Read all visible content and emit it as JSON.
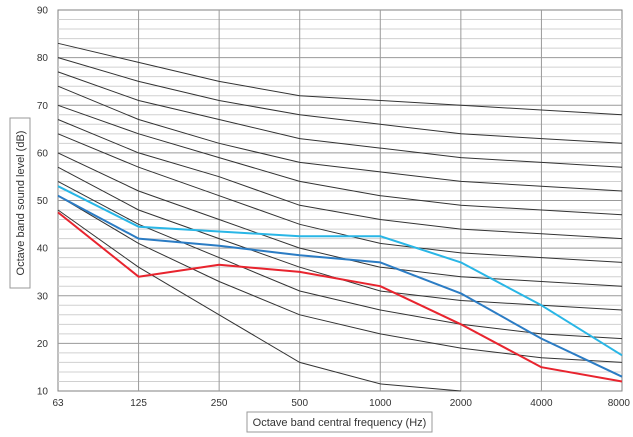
{
  "chart_data": {
    "type": "line",
    "title": "",
    "xlabel": "Octave band central frequency (Hz)",
    "ylabel": "Octave band sound level (dB)",
    "categories": [
      "63",
      "125",
      "250",
      "500",
      "1000",
      "2000",
      "4000",
      "8000"
    ],
    "ylim": [
      10,
      90
    ],
    "yticks": [
      10,
      20,
      30,
      40,
      50,
      60,
      70,
      80,
      90
    ],
    "grid": true,
    "legend": "none",
    "reference_curves": [
      {
        "values": [
          83,
          79,
          75,
          72,
          71,
          70,
          69,
          68
        ]
      },
      {
        "values": [
          80,
          75,
          71,
          68,
          66,
          64,
          63,
          62
        ]
      },
      {
        "values": [
          77,
          71,
          67,
          63,
          61,
          59,
          58,
          57
        ]
      },
      {
        "values": [
          74,
          67,
          62,
          58,
          56,
          54,
          53,
          52
        ]
      },
      {
        "values": [
          70,
          64,
          59,
          54,
          51,
          49,
          48,
          47
        ]
      },
      {
        "values": [
          67,
          60,
          55,
          49,
          46,
          44,
          43,
          42
        ]
      },
      {
        "values": [
          64,
          57,
          51,
          45,
          41,
          39,
          38,
          37
        ]
      },
      {
        "values": [
          60,
          52,
          46,
          40,
          36,
          34,
          33,
          32
        ]
      },
      {
        "values": [
          57,
          48,
          42,
          36,
          31,
          29,
          28,
          27
        ]
      },
      {
        "values": [
          54,
          45,
          38,
          31,
          27,
          24,
          22,
          21
        ]
      },
      {
        "values": [
          51,
          41,
          33,
          26,
          22,
          19,
          17,
          16
        ]
      },
      {
        "values": [
          48,
          36,
          26,
          16,
          11.5,
          10,
          null,
          null
        ]
      }
    ],
    "series": [
      {
        "color": "#29b6e6",
        "values": [
          53,
          44.5,
          43.5,
          42.5,
          42.5,
          37,
          28,
          17.5
        ]
      },
      {
        "color": "#2b7cc4",
        "values": [
          51,
          42,
          40.5,
          38.5,
          37,
          30.5,
          21,
          13
        ]
      },
      {
        "color": "#e8242e",
        "values": [
          47.5,
          34,
          36.5,
          35,
          32,
          24,
          15,
          12
        ]
      }
    ],
    "reference_color": "#333333"
  }
}
